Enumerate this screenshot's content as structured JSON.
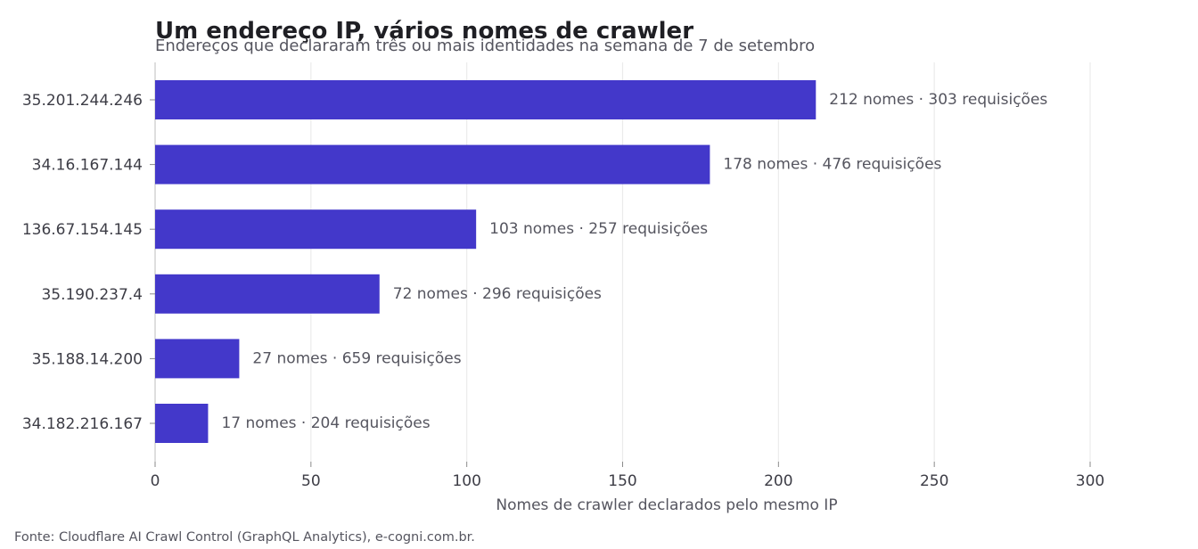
{
  "chart_data": {
    "type": "bar",
    "orientation": "horizontal",
    "title": "Um endereço IP, vários nomes de crawler",
    "subtitle": "Endereços que declararam três ou mais identidades na semana de 7 de setembro",
    "xlabel": "Nomes de crawler declarados pelo mesmo IP",
    "ylabel": "",
    "xlim": [
      0,
      300
    ],
    "xticks": [
      0,
      50,
      100,
      150,
      200,
      250,
      300
    ],
    "grid": "vertical",
    "categories": [
      "35.201.244.246",
      "34.16.167.144",
      "136.67.154.145",
      "35.190.237.4",
      "35.188.14.200",
      "34.182.216.167"
    ],
    "values": [
      212,
      178,
      103,
      72,
      27,
      17
    ],
    "data_labels": [
      "212 nomes · 303 requisições",
      "178 nomes · 476 requisições",
      "103 nomes · 257 requisições",
      "72 nomes · 296 requisições",
      "27 nomes · 659 requisições",
      "17 nomes · 204 requisições"
    ],
    "bar_color": "#4338ca",
    "source": "Fonte: Cloudflare AI Crawl Control (GraphQL Analytics), e-cogni.com.br."
  }
}
